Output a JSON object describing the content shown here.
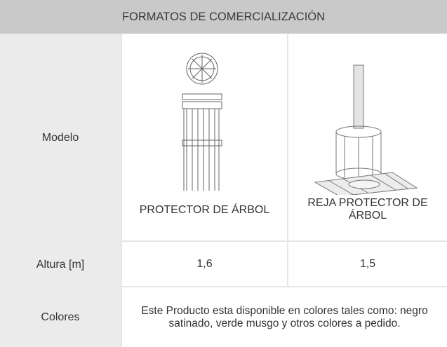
{
  "header": {
    "title": "FORMATOS DE COMERCIALIZACIÓN"
  },
  "table": {
    "rows": [
      [
        "Modelo",
        "PROTECTOR DE ÁRBOL",
        "REJA PROTECTOR DE ÁRBOL"
      ],
      [
        "Altura [m]",
        "1,6",
        "1,5"
      ],
      [
        "Colores",
        "Este Producto esta disponible en colores tales como: negro satinado, verde musgo y otros colores a pedido."
      ]
    ]
  }
}
